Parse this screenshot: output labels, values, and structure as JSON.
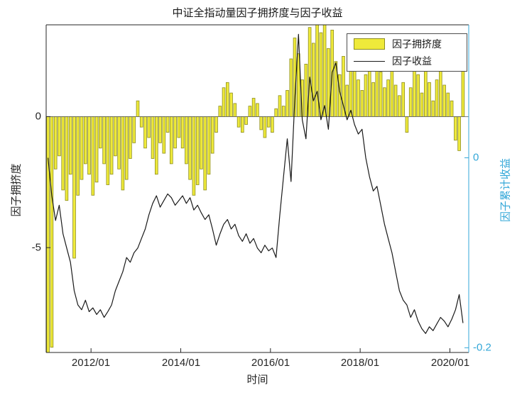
{
  "chart_data": {
    "type": "combo",
    "title": "中证全指动量因子拥挤度与因子收益",
    "xlabel": "时间",
    "ylabel_left": "因子拥挤度",
    "ylabel_right": "因子累计收益",
    "legend_position": "top-right-inside",
    "grid": false,
    "right_axis_color": "#33a7d8",
    "axis_color": "#262626",
    "xlim": [
      2011.0,
      2020.42
    ],
    "ylim_left": [
      -9.0,
      3.5
    ],
    "ylim_right": [
      -0.205,
      0.14
    ],
    "x_ticks": [
      {
        "t": 2012,
        "label": "2012/01"
      },
      {
        "t": 2014,
        "label": "2014/01"
      },
      {
        "t": 2016,
        "label": "2016/01"
      },
      {
        "t": 2018,
        "label": "2018/01"
      },
      {
        "t": 2020,
        "label": "2020/01"
      }
    ],
    "left_ticks": [
      {
        "v": 0,
        "label": "0"
      },
      {
        "v": -5,
        "label": "-5"
      }
    ],
    "right_ticks": [
      {
        "v": 0,
        "label": "0"
      },
      {
        "v": -0.2,
        "label": "-0.2"
      }
    ],
    "categories": [
      "2011/01",
      "2011/02",
      "2011/03",
      "2011/04",
      "2011/05",
      "2011/06",
      "2011/07",
      "2011/08",
      "2011/09",
      "2011/10",
      "2011/11",
      "2011/12",
      "2012/01",
      "2012/02",
      "2012/03",
      "2012/04",
      "2012/05",
      "2012/06",
      "2012/07",
      "2012/08",
      "2012/09",
      "2012/10",
      "2012/11",
      "2012/12",
      "2013/01",
      "2013/02",
      "2013/03",
      "2013/04",
      "2013/05",
      "2013/06",
      "2013/07",
      "2013/08",
      "2013/09",
      "2013/10",
      "2013/11",
      "2013/12",
      "2014/01",
      "2014/02",
      "2014/03",
      "2014/04",
      "2014/05",
      "2014/06",
      "2014/07",
      "2014/08",
      "2014/09",
      "2014/10",
      "2014/11",
      "2014/12",
      "2015/01",
      "2015/02",
      "2015/03",
      "2015/04",
      "2015/05",
      "2015/06",
      "2015/07",
      "2015/08",
      "2015/09",
      "2015/10",
      "2015/11",
      "2015/12",
      "2016/01",
      "2016/02",
      "2016/03",
      "2016/04",
      "2016/05",
      "2016/06",
      "2016/07",
      "2016/08",
      "2016/09",
      "2016/10",
      "2016/11",
      "2016/12",
      "2017/01",
      "2017/02",
      "2017/03",
      "2017/04",
      "2017/05",
      "2017/06",
      "2017/07",
      "2017/08",
      "2017/09",
      "2017/10",
      "2017/11",
      "2017/12",
      "2018/01",
      "2018/02",
      "2018/03",
      "2018/04",
      "2018/05",
      "2018/06",
      "2018/07",
      "2018/08",
      "2018/09",
      "2018/10",
      "2018/11",
      "2018/12",
      "2019/01",
      "2019/02",
      "2019/03",
      "2019/04",
      "2019/05",
      "2019/06",
      "2019/07",
      "2019/08",
      "2019/09",
      "2019/10",
      "2019/11",
      "2019/12",
      "2020/01",
      "2020/02",
      "2020/03",
      "2020/04"
    ],
    "series": [
      {
        "name": "因子拥挤度",
        "type": "bar",
        "axis": "left",
        "color": "#efea3a",
        "edge_color": "#8e8e20",
        "values": [
          -9.4,
          -8.8,
          -2.0,
          -1.5,
          -2.8,
          -3.2,
          -2.2,
          -5.4,
          -3.0,
          -2.4,
          -1.8,
          -2.2,
          -3.0,
          -2.5,
          -1.2,
          -1.8,
          -2.6,
          -2.2,
          -1.5,
          -2.0,
          -2.8,
          -2.4,
          -1.6,
          -1.0,
          0.6,
          -0.4,
          -1.2,
          -0.8,
          -1.6,
          -2.2,
          -1.0,
          -1.4,
          -0.6,
          -1.8,
          -1.2,
          -0.8,
          -1.2,
          -1.8,
          -2.4,
          -3.0,
          -2.6,
          -2.0,
          -2.8,
          -2.2,
          -1.4,
          -0.6,
          0.4,
          1.1,
          1.3,
          0.9,
          0.5,
          -0.4,
          -0.6,
          -0.3,
          0.4,
          0.7,
          0.5,
          -0.5,
          -0.8,
          -0.4,
          -0.6,
          0.3,
          0.8,
          0.4,
          1.0,
          2.2,
          3.0,
          2.4,
          1.4,
          2.0,
          3.4,
          2.8,
          3.5,
          3.2,
          3.6,
          2.6,
          3.3,
          2.1,
          1.6,
          2.3,
          1.2,
          1.9,
          2.5,
          1.4,
          1.0,
          1.6,
          2.2,
          1.3,
          2.9,
          1.7,
          1.1,
          1.4,
          2.0,
          1.2,
          0.8,
          1.3,
          -0.6,
          1.1,
          2.4,
          1.6,
          0.9,
          1.8,
          1.3,
          0.6,
          1.4,
          2.6,
          1.2,
          0.9,
          0.6,
          -0.9,
          -1.3,
          2.7
        ]
      },
      {
        "name": "因子收益",
        "type": "line",
        "axis": "right",
        "color": "#1a1a1a",
        "values": [
          0.0,
          -0.04,
          -0.066,
          -0.05,
          -0.08,
          -0.095,
          -0.11,
          -0.14,
          -0.155,
          -0.16,
          -0.15,
          -0.162,
          -0.158,
          -0.165,
          -0.16,
          -0.168,
          -0.162,
          -0.155,
          -0.14,
          -0.13,
          -0.12,
          -0.105,
          -0.11,
          -0.1,
          -0.095,
          -0.085,
          -0.075,
          -0.06,
          -0.048,
          -0.04,
          -0.052,
          -0.045,
          -0.038,
          -0.042,
          -0.05,
          -0.045,
          -0.04,
          -0.048,
          -0.042,
          -0.055,
          -0.05,
          -0.058,
          -0.065,
          -0.06,
          -0.075,
          -0.092,
          -0.08,
          -0.07,
          -0.065,
          -0.075,
          -0.07,
          -0.082,
          -0.088,
          -0.08,
          -0.09,
          -0.085,
          -0.095,
          -0.1,
          -0.092,
          -0.098,
          -0.095,
          -0.105,
          -0.06,
          -0.02,
          0.02,
          -0.025,
          0.06,
          0.13,
          0.04,
          0.02,
          0.085,
          0.06,
          0.07,
          0.04,
          0.055,
          0.03,
          0.09,
          0.1,
          0.07,
          0.055,
          0.04,
          0.05,
          0.035,
          0.025,
          0.03,
          0.0,
          -0.02,
          -0.035,
          -0.03,
          -0.05,
          -0.07,
          -0.085,
          -0.1,
          -0.12,
          -0.14,
          -0.15,
          -0.155,
          -0.168,
          -0.16,
          -0.172,
          -0.18,
          -0.185,
          -0.178,
          -0.182,
          -0.175,
          -0.168,
          -0.172,
          -0.178,
          -0.17,
          -0.16,
          -0.144,
          -0.174
        ]
      }
    ]
  }
}
